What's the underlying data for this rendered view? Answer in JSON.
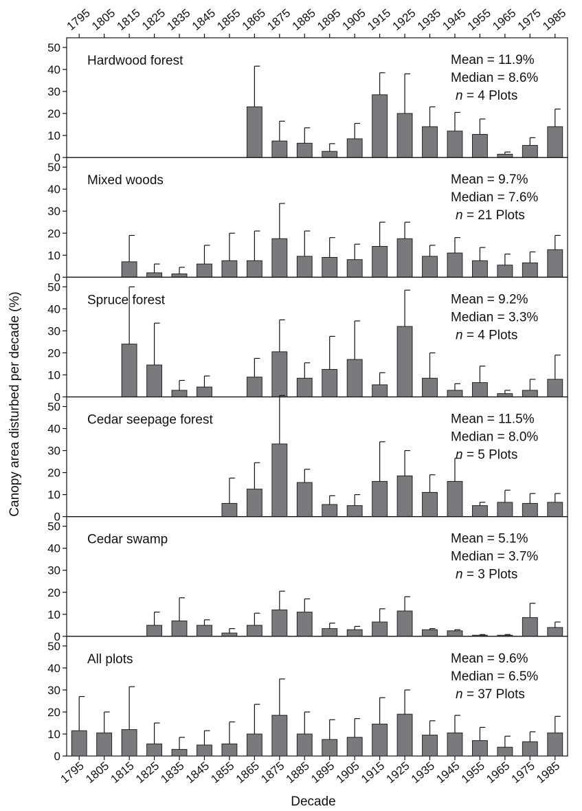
{
  "chart_data": {
    "type": "bar",
    "xlabel": "Decade",
    "ylabel": "Canopy area disturbed per decade (%)",
    "categories": [
      "1795",
      "1805",
      "1815",
      "1825",
      "1835",
      "1845",
      "1855",
      "1865",
      "1875",
      "1885",
      "1895",
      "1905",
      "1915",
      "1925",
      "1935",
      "1945",
      "1955",
      "1965",
      "1975",
      "1985"
    ],
    "ylim": [
      0,
      50
    ],
    "yticks": [
      0,
      10,
      20,
      30,
      40,
      50
    ],
    "grid": false,
    "bar_color": "#7a7a7e",
    "panels": [
      {
        "title": "Hardwood forest",
        "stats": [
          "Mean = 11.9%",
          "Median = 8.6%"
        ],
        "n_text": "n",
        "n_rest": " = 4 Plots",
        "values": [
          null,
          null,
          null,
          null,
          null,
          null,
          null,
          23,
          7.5,
          6.5,
          2.8,
          8.5,
          28.5,
          20,
          14,
          12,
          10.5,
          1.5,
          5.5,
          14
        ],
        "errors": [
          null,
          null,
          null,
          null,
          null,
          null,
          null,
          18.5,
          9,
          7,
          3.5,
          7,
          10,
          18,
          9,
          8.5,
          7,
          1,
          3.5,
          8
        ]
      },
      {
        "title": "Mixed woods",
        "stats": [
          "Mean = 9.7%",
          "Median = 7.6%"
        ],
        "n_text": "n",
        "n_rest": " = 21 Plots",
        "values": [
          null,
          null,
          7,
          2,
          1.5,
          6,
          7.5,
          7.5,
          17.5,
          9.5,
          9,
          8,
          14,
          17.5,
          9.5,
          11,
          7.5,
          5.5,
          6.5,
          12.5
        ],
        "errors": [
          null,
          null,
          12,
          4,
          3,
          8.5,
          12.5,
          13.5,
          16,
          11.5,
          9,
          7,
          11,
          7.5,
          5,
          7,
          6,
          5,
          5,
          6.5
        ]
      },
      {
        "title": "Spruce forest",
        "stats": [
          "Mean = 9.2%",
          "Median = 3.3%"
        ],
        "n_text": "n",
        "n_rest": " = 4 Plots",
        "values": [
          null,
          null,
          24,
          14.5,
          3,
          4.5,
          null,
          9,
          20.5,
          8.5,
          12.5,
          17,
          5.5,
          32,
          8.5,
          3,
          6.5,
          1.5,
          3,
          8
        ],
        "errors": [
          null,
          null,
          26,
          19,
          4.5,
          5,
          null,
          8.5,
          14.5,
          7,
          15,
          17.5,
          5.5,
          16.5,
          11.5,
          3,
          7.5,
          1.5,
          5,
          11
        ]
      },
      {
        "title": "Cedar seepage forest",
        "stats": [
          "Mean = 11.5%",
          "Median = 8.0%"
        ],
        "n_text": "n",
        "n_rest": " = 5 Plots",
        "values": [
          null,
          null,
          null,
          null,
          null,
          null,
          6,
          12.5,
          33,
          15.5,
          5.5,
          5,
          16,
          18.5,
          11,
          16,
          5,
          6.5,
          6,
          6.5
        ],
        "errors": [
          null,
          null,
          null,
          null,
          null,
          null,
          11.5,
          12,
          22,
          6,
          4,
          5,
          18,
          11.5,
          8,
          10.5,
          1.5,
          5.5,
          4.5,
          4
        ]
      },
      {
        "title": "Cedar swamp",
        "stats": [
          "Mean = 5.1%",
          "Median = 3.7%"
        ],
        "n_text": "n",
        "n_rest": " = 3 Plots",
        "values": [
          null,
          null,
          null,
          5,
          7,
          5,
          1.5,
          5,
          12,
          11,
          3.5,
          3,
          6.5,
          11.5,
          3,
          2.5,
          0.5,
          0.5,
          8.5,
          4
        ],
        "errors": [
          null,
          null,
          null,
          6,
          10.5,
          2.5,
          2,
          5.5,
          8.5,
          6,
          2.5,
          1.5,
          6,
          6.5,
          0.5,
          0.5,
          0.3,
          0.3,
          6.5,
          2.5
        ]
      },
      {
        "title": "All plots",
        "stats": [
          "Mean = 9.6%",
          "Median = 6.5%"
        ],
        "n_text": "n",
        "n_rest": " = 37 Plots",
        "values": [
          11.5,
          10.5,
          12,
          5.5,
          3,
          5,
          5.5,
          10,
          18.5,
          10,
          7.5,
          8.5,
          14.5,
          19,
          9.5,
          10.5,
          7,
          4,
          6.5,
          10.5
        ],
        "errors": [
          15.5,
          9.5,
          19.5,
          9.5,
          5.5,
          6.5,
          10,
          13.5,
          16.5,
          10,
          9,
          8.5,
          12,
          11,
          6.5,
          8,
          6,
          5,
          4.5,
          7.5
        ]
      }
    ]
  }
}
